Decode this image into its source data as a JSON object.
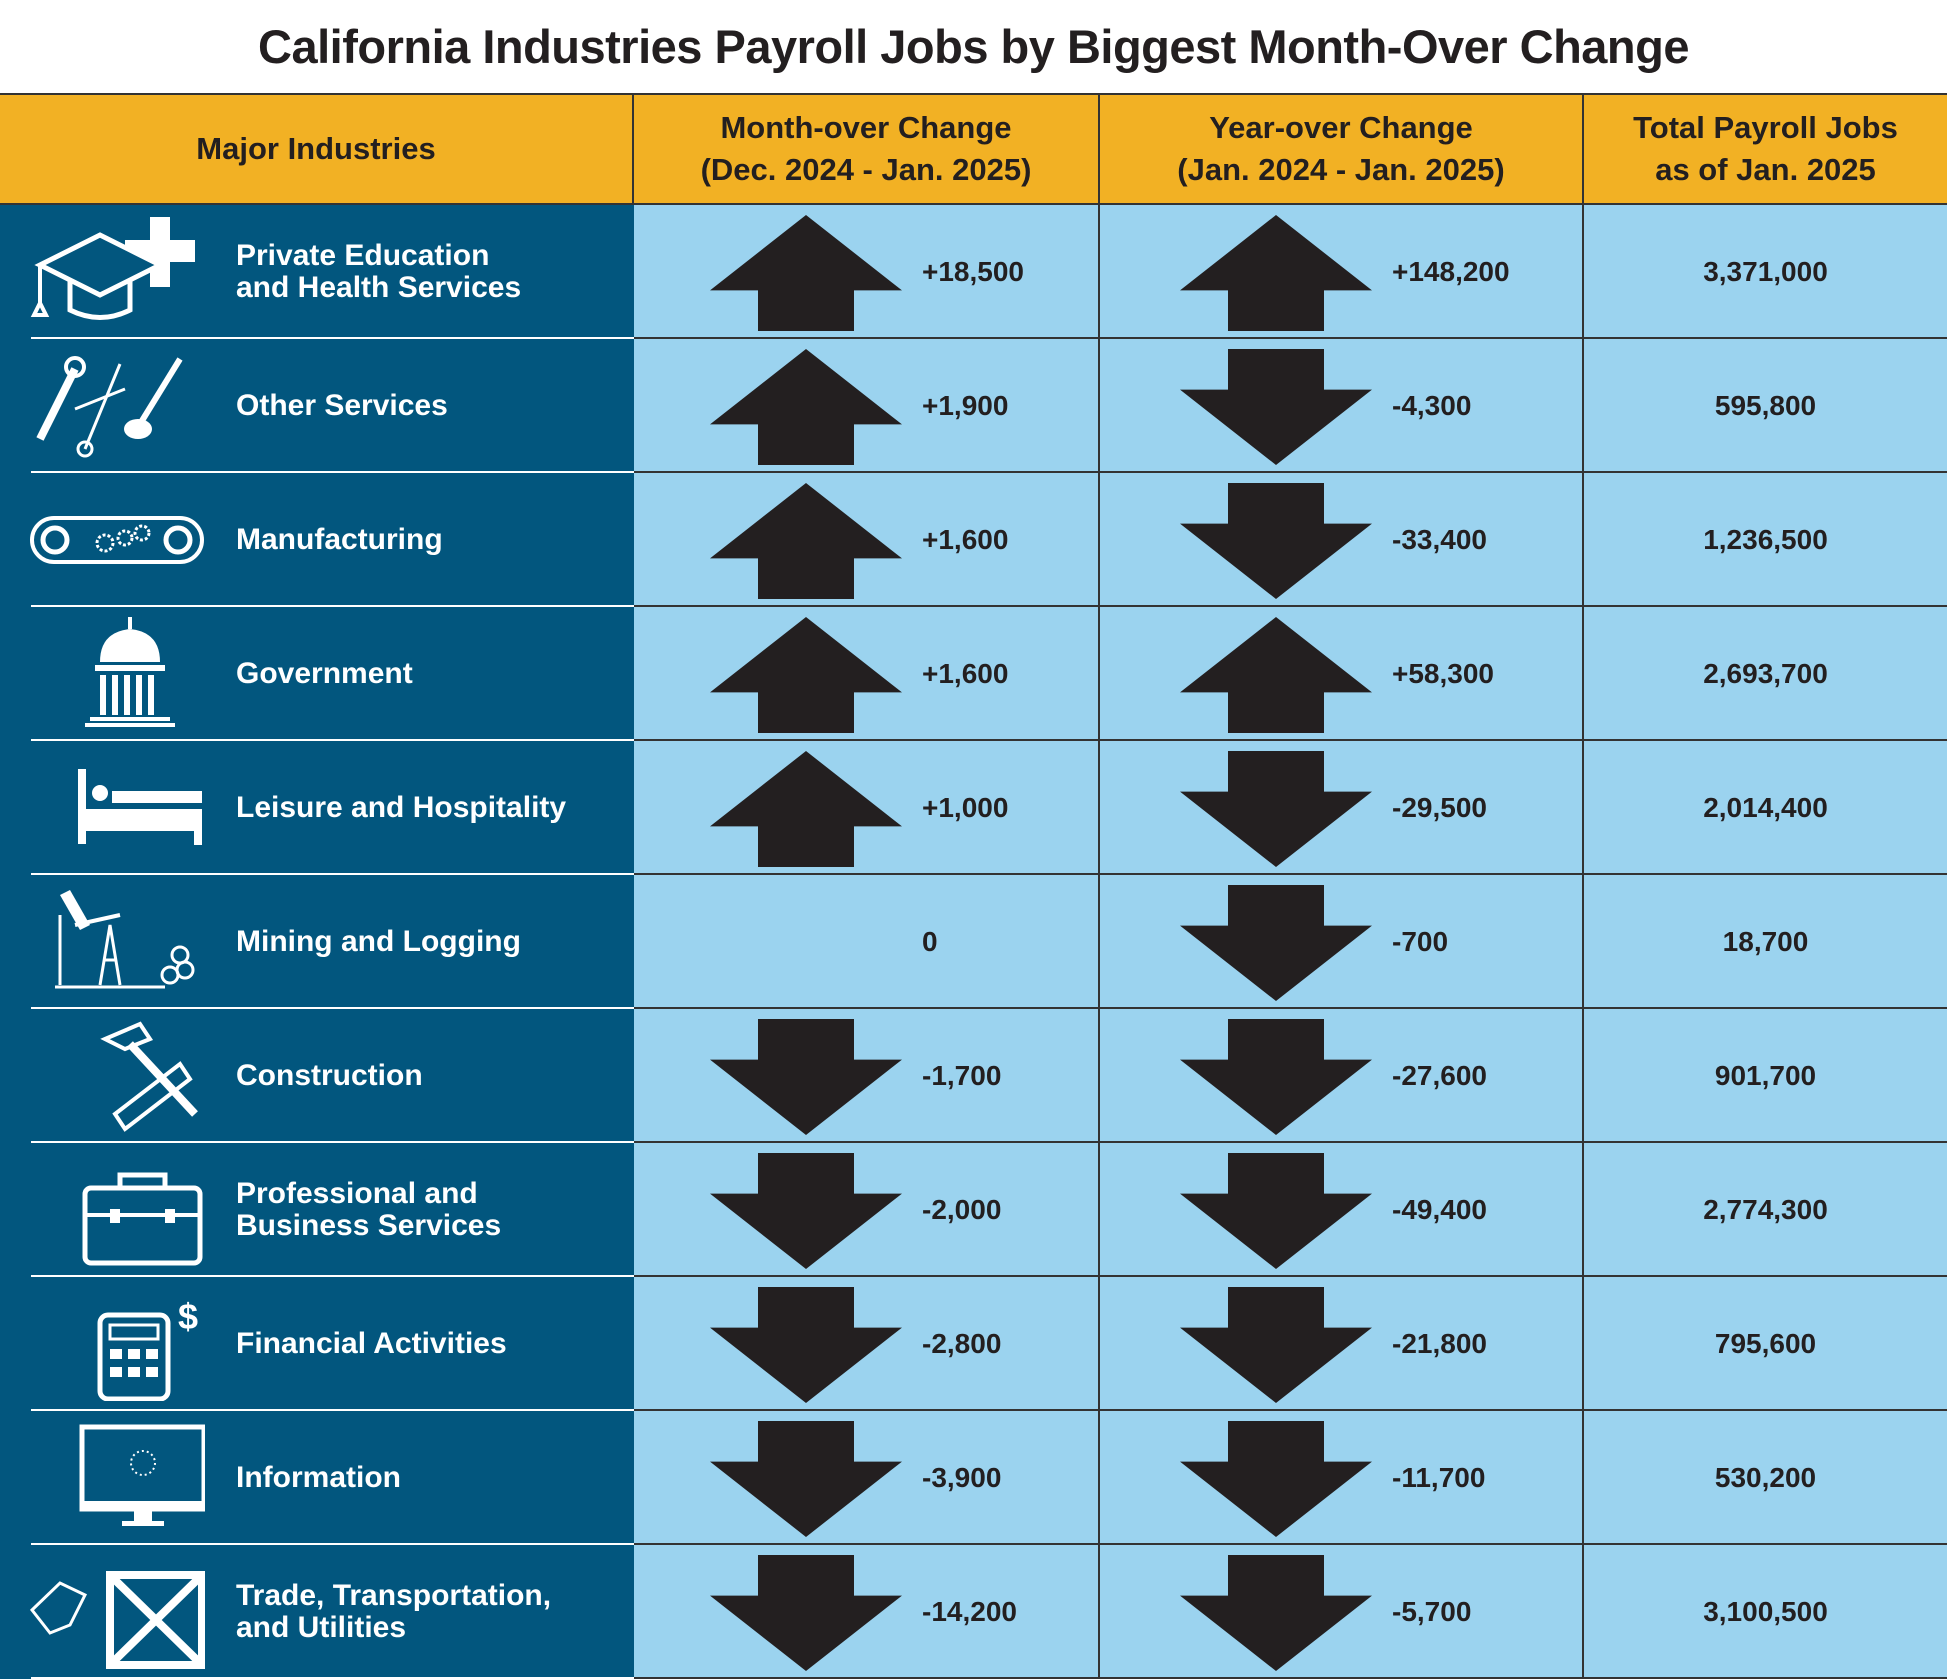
{
  "title": "California Industries Payroll Jobs by Biggest Month-Over Change",
  "headers": {
    "industry": "Major Industries",
    "month": "Month-over Change\n(Dec. 2024 - Jan. 2025)",
    "year": "Year-over Change\n(Jan. 2024 - Jan. 2025)",
    "total": "Total Payroll Jobs\nas of Jan. 2025"
  },
  "colors": {
    "header": "#f2b124",
    "industry_bg": "#02567e",
    "cell_bg": "#9bd3ef",
    "arrow": "#231f20"
  },
  "chart_data": {
    "type": "table",
    "title": "California Industries Payroll Jobs by Biggest Month-Over Change",
    "columns": [
      "Major Industries",
      "Month-over Change (Dec. 2024 - Jan. 2025)",
      "Year-over Change (Jan. 2024 - Jan. 2025)",
      "Total Payroll Jobs as of Jan. 2025"
    ],
    "rows": [
      {
        "icon": "graduation-cap-medical-cross-icon",
        "industry": "Private Education\nand Health Services",
        "month": "+18,500",
        "year": "+148,200",
        "total": "3,371,000"
      },
      {
        "icon": "wrench-scissors-brush-icon",
        "industry": "Other Services",
        "month": "+1,900",
        "year": "-4,300",
        "total": "595,800"
      },
      {
        "icon": "conveyor-gears-icon",
        "industry": "Manufacturing",
        "month": "+1,600",
        "year": "-33,400",
        "total": "1,236,500"
      },
      {
        "icon": "capitol-building-icon",
        "industry": "Government",
        "month": "+1,600",
        "year": "+58,300",
        "total": "2,693,700"
      },
      {
        "icon": "bed-icon",
        "industry": "Leisure and Hospitality",
        "month": "+1,000",
        "year": "-29,500",
        "total": "2,014,400"
      },
      {
        "icon": "oil-pump-logs-icon",
        "industry": "Mining and Logging",
        "month": "0",
        "year": "-700",
        "total": "18,700"
      },
      {
        "icon": "hammer-saw-icon",
        "industry": "Construction",
        "month": "-1,700",
        "year": "-27,600",
        "total": "901,700"
      },
      {
        "icon": "toolbox-icon",
        "industry": "Professional and\nBusiness Services",
        "month": "-2,000",
        "year": "-49,400",
        "total": "2,774,300"
      },
      {
        "icon": "calculator-dollar-icon",
        "industry": "Financial Activities",
        "month": "-2,800",
        "year": "-21,800",
        "total": "795,600"
      },
      {
        "icon": "monitor-icon",
        "industry": "Information",
        "month": "-3,900",
        "year": "-11,700",
        "total": "530,200"
      },
      {
        "icon": "crate-tag-icon",
        "industry": "Trade, Transportation,\nand Utilities",
        "month": "-14,200",
        "year": "-5,700",
        "total": "3,100,500"
      }
    ]
  }
}
